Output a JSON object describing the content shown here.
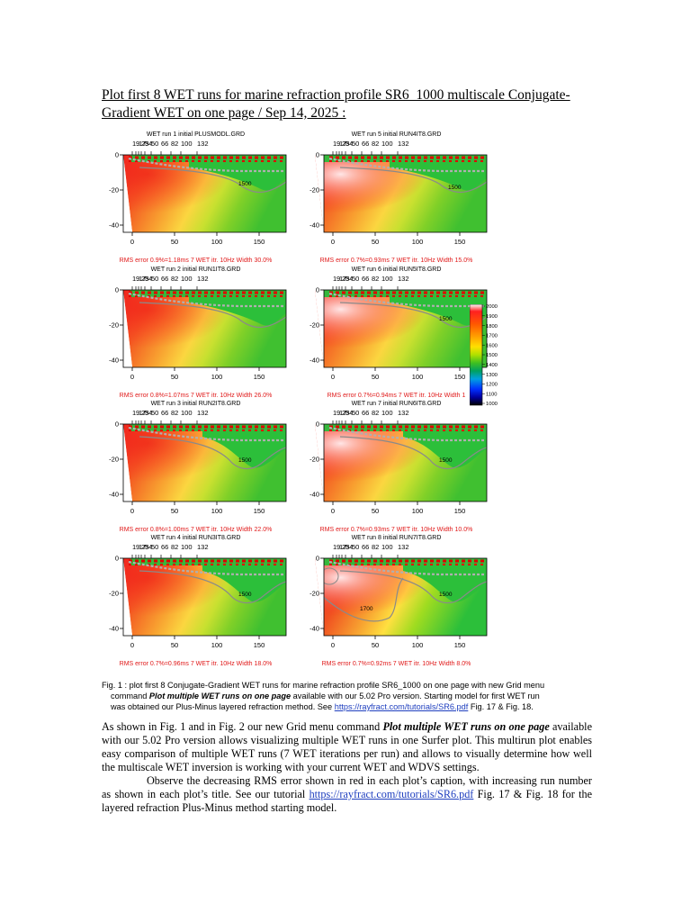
{
  "heading": "Plot first 8 WET runs for marine refraction profile SR6_1000 multiscale Conjugate-Gradient WET on one page / Sep 14, 2025 :",
  "top_axis_labels": [
    "1",
    "9",
    "17",
    "25",
    "34",
    "50",
    "66",
    "82",
    "100",
    "132"
  ],
  "y_ticks": [
    "0",
    "-20",
    "-40"
  ],
  "x_ticks": [
    "0",
    "50",
    "100",
    "150"
  ],
  "panels": [
    {
      "title": "WET run 1 initial PLUSMODL.GRD",
      "rms": "RMS error 0.9%=1.18ms 7 WET itr. 10Hz Width 30.0%",
      "contour_label": "1500"
    },
    {
      "title": "WET run 5 initial RUN4IT8.GRD",
      "rms": "RMS error 0.7%=0.93ms 7 WET itr. 10Hz Width 15.0%",
      "contour_label": "1500"
    },
    {
      "title": "WET run 2 initial RUN1IT8.GRD",
      "rms": "RMS error 0.8%=1.07ms 7 WET itr. 10Hz Width 26.0%",
      "contour_label": ""
    },
    {
      "title": "WET run 6 initial RUN5IT8.GRD",
      "rms": "RMS error 0.7%=0.94ms 7 WET itr. 10Hz Width 1",
      "contour_label": "1500"
    },
    {
      "title": "WET run 3 initial RUN2IT8.GRD",
      "rms": "RMS error 0.8%=1.00ms 7 WET itr. 10Hz Width 22.0%",
      "contour_label": "1500"
    },
    {
      "title": "WET run 7 initial RUN6IT8.GRD",
      "rms": "RMS error 0.7%=0.93ms 7 WET itr. 10Hz Width 10.0%",
      "contour_label": "1500"
    },
    {
      "title": "WET run 4 initial RUN3IT8.GRD",
      "rms": "RMS error 0.7%=0.96ms 7 WET itr. 10Hz Width 18.0%",
      "contour_label": "1500"
    },
    {
      "title": "WET run 8 initial RUN7IT8.GRD",
      "rms": "RMS error 0.7%=0.92ms 7 WET itr. 10Hz Width 8.0%",
      "contour_label": "1500",
      "contour_label_2": "1700"
    }
  ],
  "colorbar": {
    "labels": [
      "2000",
      "1900",
      "1800",
      "1700",
      "1600",
      "1500",
      "1400",
      "1300",
      "1200",
      "1100",
      "1000"
    ],
    "colors": [
      "#ffffff",
      "#ff0000",
      "#ff8000",
      "#ffe000",
      "#a0e000",
      "#00c000",
      "#00a050",
      "#0080ff",
      "#0000ff",
      "#000000"
    ]
  },
  "caption": {
    "line1": "Fig. 1 : plot first 8 Conjugate-Gradient WET runs for marine refraction profile SR6_1000 on one page with new Grid menu",
    "line2_pre": "command ",
    "line2_bold": "Plot multiple WET runs on one page",
    "line2_post": " available with our 5.02 Pro version. Starting model for first WET run",
    "line3_pre": "was obtained our Plus-Minus layered refraction method. See ",
    "link": "https://rayfract.com/tutorials/SR6.pdf",
    "line3_post": " Fig. 17 & Fig. 18."
  },
  "body": {
    "p1_pre": "As shown in Fig. 1 and in Fig. 2 our new Grid menu command ",
    "p1_bold": "Plot multiple WET runs on one page",
    "p1_post": " available with our 5.02 Pro version allows visualizing multiple WET runs in one Surfer plot. This multirun plot enables easy comparison of multiple WET runs (7 WET iterations per run) and allows to visually determine how well the multiscale WET inversion is working with your current WET and WDVS settings.",
    "p2_pre": "Observe the decreasing RMS error shown in red in each plot’s caption, with increasing run number as shown in each plot’s title. See our tutorial ",
    "p2_link": "https://rayfract.com/tutorials/SR6.pdf",
    "p2_post": " Fig. 17 & Fig. 18 for the layered refraction Plus-Minus method starting model."
  }
}
